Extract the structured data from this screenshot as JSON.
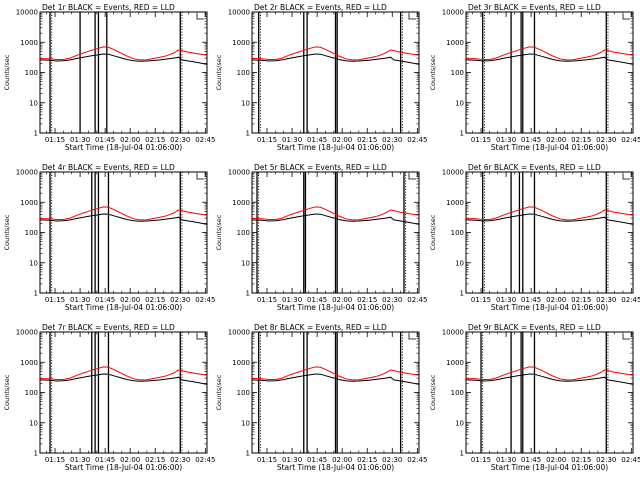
{
  "chart_data": {
    "type": "line",
    "y_scale": "log",
    "ylim": [
      1,
      10000
    ],
    "y_ticks": [
      "1",
      "10",
      "100",
      "1000",
      "10000"
    ],
    "ylabel": "Counts/sec",
    "x_range": [
      "01:06",
      "02:46"
    ],
    "x_ticks": [
      "01:15",
      "01:30",
      "01:45",
      "02:00",
      "02:15",
      "02:30",
      "02:45"
    ],
    "xlabel_primary": "Start Time (18-Jul-04 01:06:00)",
    "xlabel_alt": "Start Time (18-Jul-04 01:06:00)",
    "colors": {
      "events": "#000000",
      "lld": "#ff0000"
    },
    "red_profile": [
      [
        "01:06",
        290
      ],
      [
        "01:12",
        285
      ],
      [
        "01:16",
        270
      ],
      [
        "01:20",
        270
      ],
      [
        "01:24",
        300
      ],
      [
        "01:28",
        370
      ],
      [
        "01:32",
        440
      ],
      [
        "01:36",
        520
      ],
      [
        "01:40",
        610
      ],
      [
        "01:44",
        700
      ],
      [
        "01:47",
        680
      ],
      [
        "01:50",
        580
      ],
      [
        "01:54",
        450
      ],
      [
        "01:58",
        350
      ],
      [
        "02:02",
        285
      ],
      [
        "02:06",
        260
      ],
      [
        "02:10",
        265
      ],
      [
        "02:14",
        290
      ],
      [
        "02:18",
        320
      ],
      [
        "02:22",
        360
      ],
      [
        "02:26",
        440
      ],
      [
        "02:29",
        560
      ],
      [
        "02:31",
        530
      ],
      [
        "02:35",
        470
      ],
      [
        "02:40",
        420
      ],
      [
        "02:46",
        370
      ]
    ],
    "black_profile": [
      [
        "01:06",
        260
      ],
      [
        "01:12",
        255
      ],
      [
        "01:16",
        240
      ],
      [
        "01:20",
        245
      ],
      [
        "01:24",
        260
      ],
      [
        "01:28",
        290
      ],
      [
        "01:32",
        320
      ],
      [
        "01:36",
        350
      ],
      [
        "01:40",
        380
      ],
      [
        "01:44",
        410
      ],
      [
        "01:47",
        400
      ],
      [
        "01:50",
        360
      ],
      [
        "01:54",
        310
      ],
      [
        "01:58",
        270
      ],
      [
        "02:02",
        245
      ],
      [
        "02:06",
        235
      ],
      [
        "02:10",
        240
      ],
      [
        "02:14",
        250
      ],
      [
        "02:18",
        260
      ],
      [
        "02:22",
        280
      ],
      [
        "02:26",
        300
      ],
      [
        "02:29",
        320
      ],
      [
        "02:31",
        260
      ],
      [
        "02:35",
        240
      ],
      [
        "02:40",
        215
      ],
      [
        "02:46",
        185
      ]
    ],
    "panels": [
      {
        "title": "Det 1r  BLACK = Events, RED = LLD",
        "xlabel_variant": 0,
        "lines": [
          "01:12",
          "01:30",
          "01:39",
          "01:41",
          "01:46",
          "02:30"
        ],
        "dotted": [
          "01:13",
          "02:31"
        ]
      },
      {
        "title": "Det 2r  BLACK = Events, RED = LLD",
        "xlabel_variant": 0,
        "lines": [
          "01:10",
          "01:37",
          "01:39",
          "01:56",
          "01:57",
          "02:35"
        ],
        "dotted": [
          "01:11",
          "02:36"
        ]
      },
      {
        "title": "Det 3r  BLACK = Events, RED = LLD",
        "xlabel_variant": 1,
        "lines": [
          "01:16",
          "01:33",
          "01:39",
          "01:40",
          "01:47",
          "02:30"
        ],
        "dotted": [
          "01:17",
          "02:31"
        ]
      },
      {
        "title": "Det 4r  BLACK = Events, RED = LLD",
        "xlabel_variant": 0,
        "lines": [
          "01:12",
          "01:37",
          "01:39",
          "01:41",
          "01:47",
          "02:30"
        ],
        "dotted": [
          "01:13",
          "02:31"
        ]
      },
      {
        "title": "Det 5r  BLACK = Events, RED = LLD",
        "xlabel_variant": 0,
        "lines": [
          "01:09",
          "01:37",
          "01:38",
          "01:56",
          "01:57",
          "02:37"
        ],
        "dotted": [
          "01:10",
          "02:38"
        ]
      },
      {
        "title": "Det 6r  BLACK = Events, RED = LLD",
        "xlabel_variant": 1,
        "lines": [
          "01:16",
          "01:33",
          "01:38",
          "01:40",
          "01:47",
          "02:30"
        ],
        "dotted": [
          "01:17",
          "02:31"
        ]
      },
      {
        "title": "Det 7r  BLACK = Events, RED = LLD",
        "xlabel_variant": 0,
        "lines": [
          "01:12",
          "01:37",
          "01:39",
          "01:41",
          "01:47",
          "02:30"
        ],
        "dotted": [
          "01:13",
          "02:31"
        ]
      },
      {
        "title": "Det 8r  BLACK = Events, RED = LLD",
        "xlabel_variant": 0,
        "lines": [
          "01:10",
          "01:37",
          "01:39",
          "01:56",
          "01:57",
          "02:35"
        ],
        "dotted": [
          "01:11",
          "02:36"
        ]
      },
      {
        "title": "Det 9r  BLACK = Events, RED = LLD",
        "xlabel_variant": 1,
        "lines": [
          "01:15",
          "01:33",
          "01:39",
          "01:40",
          "01:47",
          "02:30"
        ],
        "dotted": [
          "01:16",
          "02:31"
        ]
      }
    ]
  }
}
